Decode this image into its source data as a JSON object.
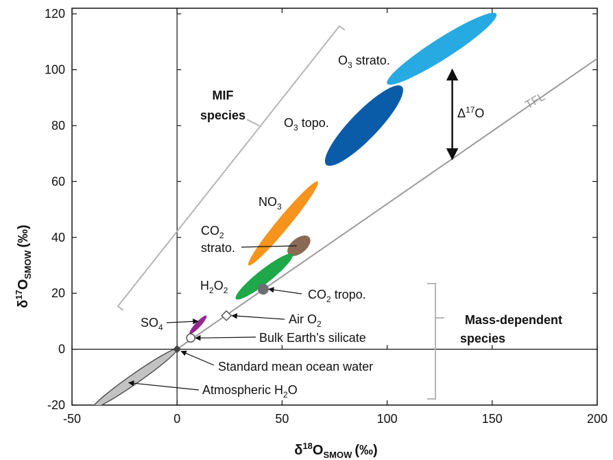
{
  "chart_data": {
    "type": "scatter",
    "xlabel": {
      "base": "δ",
      "sup": "18",
      "main": "O",
      "sub": "SMOW",
      "unit": "(‰)"
    },
    "ylabel": {
      "base": "δ",
      "sup": "17",
      "main": "O",
      "sub": "SMOW",
      "unit": "(‰)"
    },
    "xlim": [
      -50,
      200
    ],
    "ylim": [
      -20,
      122
    ],
    "x_ticks": [
      -50,
      0,
      50,
      100,
      150,
      200
    ],
    "y_ticks": [
      -20,
      0,
      20,
      40,
      60,
      80,
      100,
      120
    ],
    "x_tick_labels": [
      "-50",
      "0",
      "50",
      "100",
      "150",
      "200"
    ],
    "y_tick_labels": [
      "-20",
      "0",
      "20",
      "40",
      "60",
      "80",
      "100",
      "120"
    ],
    "tfl": {
      "label": "TFL",
      "slope": 0.52,
      "x_range": [
        -50,
        200
      ]
    },
    "colors": {
      "o3_strato": "#27aae1",
      "o3_topo": "#0b5ca8",
      "no3": "#f7941d",
      "co2_strato": "#8b6a55",
      "h2o2": "#1ea84a",
      "so4": "#93278f",
      "atm_h2o": "#c2c2c2",
      "point_gray": "#6d6e71",
      "tfl_line": "#9a9a9a",
      "bracket": "#b5b5b5"
    },
    "ellipses": [
      {
        "id": "o3-strato",
        "x1": 100,
        "y1": 95,
        "x2": 152,
        "y2": 120
      },
      {
        "id": "o3-topo",
        "x1": 71,
        "y1": 66,
        "x2": 107,
        "y2": 94
      },
      {
        "id": "no3",
        "x1": 34,
        "y1": 30,
        "x2": 67,
        "y2": 60
      },
      {
        "id": "co2-strato",
        "x1": 53,
        "y1": 34,
        "x2": 63,
        "y2": 40
      },
      {
        "id": "h2o2",
        "x1": 28,
        "y1": 18,
        "x2": 55,
        "y2": 34
      },
      {
        "id": "so4",
        "x1": 6,
        "y1": 5.5,
        "x2": 14,
        "y2": 12
      },
      {
        "id": "atm-h2o",
        "x1": -40,
        "y1": -21,
        "x2": 0,
        "y2": 0
      }
    ],
    "points": [
      {
        "id": "co2-tropo",
        "x": 41,
        "y": 21.5,
        "marker": "filled-circle"
      },
      {
        "id": "air-o2",
        "x": 23.5,
        "y": 12,
        "marker": "open-diamond"
      },
      {
        "id": "bulk-earth",
        "x": 6.5,
        "y": 4,
        "marker": "open-circle"
      },
      {
        "id": "smow",
        "x": 0,
        "y": 0,
        "marker": "filled-diamond"
      }
    ],
    "delta_arrow": {
      "x": 131,
      "y_top": 100,
      "y_bottom": 68
    },
    "annotations": {
      "o3_strato": {
        "main": "O",
        "sub": "3",
        "rest": " strato."
      },
      "o3_topo": {
        "main": "O",
        "sub": "3",
        "rest": " topo."
      },
      "no3": {
        "main": "NO",
        "sub": "3"
      },
      "co2_strato_line1": {
        "main": "CO",
        "sub": "2"
      },
      "co2_strato_line2": "strato.",
      "h2o2": {
        "a": "H",
        "sub1": "2",
        "b": "O",
        "sub2": "2"
      },
      "so4": {
        "main": "SO",
        "sub": "4"
      },
      "co2_tropo": {
        "main": "CO",
        "sub": "2",
        "rest": " tropo."
      },
      "air_o2": {
        "main": "Air O",
        "sub": "2"
      },
      "bulk_earth": "Bulk Earth’s silicate",
      "smow": "Standard mean ocean water",
      "atm_h2o": {
        "main": "Atmospheric H",
        "sub": "2",
        "rest": "O"
      },
      "delta": {
        "main": "Δ",
        "sup": "17",
        "rest": "O"
      },
      "mif_line1": "MIF",
      "mif_line2": "species",
      "md_line1": "Mass-dependent",
      "md_line2": "species"
    }
  }
}
